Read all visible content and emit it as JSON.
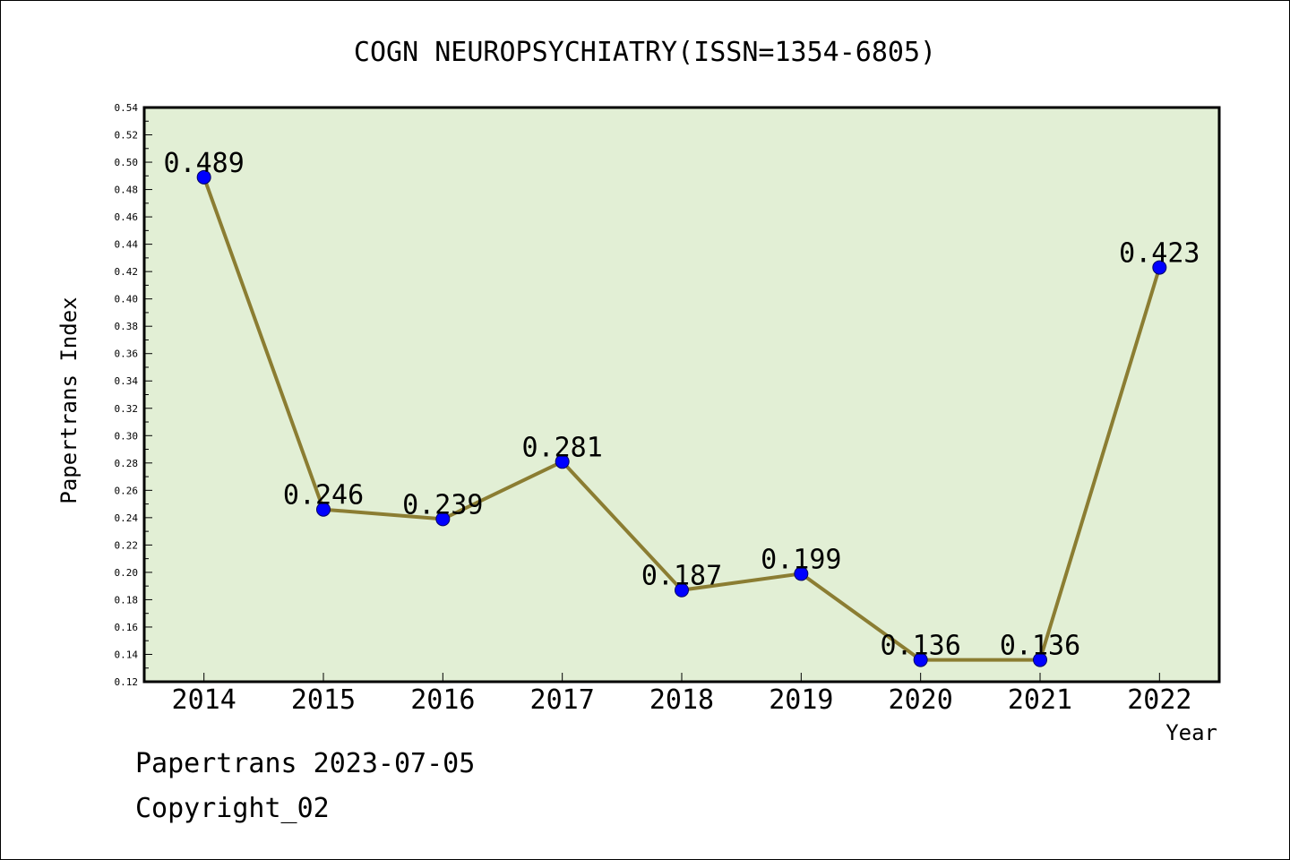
{
  "footer": {
    "line1": "Papertrans 2023-07-05",
    "line2": "Copyright_02"
  },
  "colors": {
    "plot_background": "#e2efd5",
    "line": "#8b7d32",
    "marker": "#0000ff",
    "marker_edge": "#000066"
  },
  "chart_data": {
    "type": "line",
    "title": "COGN NEUROPSYCHIATRY(ISSN=1354-6805)",
    "xlabel": "Year",
    "ylabel": "Papertrans Index",
    "categories": [
      "2014",
      "2015",
      "2016",
      "2017",
      "2018",
      "2019",
      "2020",
      "2021",
      "2022"
    ],
    "series": [
      {
        "values": [
          0.489,
          0.246,
          0.239,
          0.281,
          0.187,
          0.199,
          0.136,
          0.136,
          0.423
        ]
      }
    ],
    "data_labels": [
      "0.489",
      "0.246",
      "0.239",
      "0.281",
      "0.187",
      "0.199",
      "0.136",
      "0.136",
      "0.423"
    ],
    "ylim": [
      0.12,
      0.54
    ],
    "y_ticks": [
      "0.12",
      "0.14",
      "0.16",
      "0.18",
      "0.20",
      "0.22",
      "0.24",
      "0.26",
      "0.28",
      "0.30",
      "0.32",
      "0.34",
      "0.36",
      "0.38",
      "0.40",
      "0.42",
      "0.44",
      "0.46",
      "0.48",
      "0.50",
      "0.52",
      "0.54"
    ],
    "y_minor_step": 0.01,
    "grid": false,
    "legend": "none"
  }
}
